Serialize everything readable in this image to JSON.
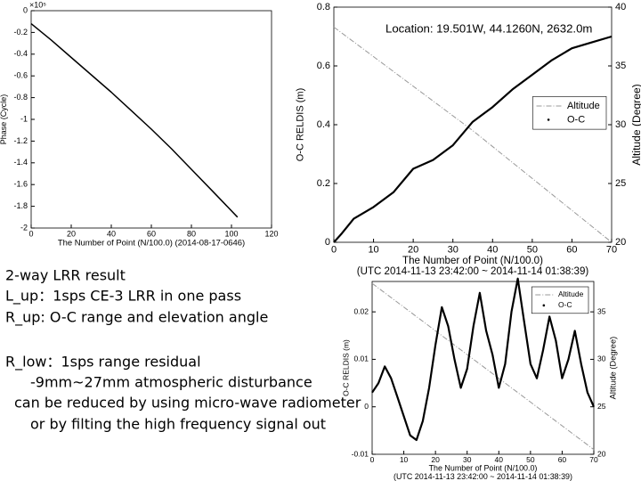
{
  "chart_data": [
    {
      "type": "line",
      "y_multiplier": "×10⁵",
      "ylabel": "Phase (Cycle)",
      "xlabel": "The Number of Point (N/100.0) (2014-08-17-0646)",
      "xlim": [
        0,
        120
      ],
      "xticks": [
        0,
        20,
        40,
        60,
        80,
        100,
        120
      ],
      "ylim": [
        -2,
        0
      ],
      "yticks": [
        0,
        -0.2,
        -0.4,
        -0.6,
        -0.8,
        -1,
        -1.2,
        -1.4,
        -1.6,
        -1.8,
        -2
      ],
      "series": [
        {
          "color": "#000000",
          "linestyle": "solid",
          "x": [
            0,
            10,
            20,
            30,
            40,
            50,
            60,
            70,
            80,
            90,
            103
          ],
          "values": [
            -0.12,
            -0.27,
            -0.43,
            -0.59,
            -0.75,
            -0.92,
            -1.09,
            -1.27,
            -1.46,
            -1.65,
            -1.9
          ]
        }
      ]
    },
    {
      "type": "line",
      "title": "Location: 19.501W, 44.1260N, 2632.0m",
      "ylabel": "O-C RELDIS (m)",
      "y2label": "Altitude (Degree)",
      "xlabel": "The Number of Point (N/100.0)",
      "xlabel2": "(UTC 2014-11-13 23:42:00 ~ 2014-11-14 01:38:39)",
      "xlim": [
        0,
        70
      ],
      "xticks": [
        0,
        10,
        20,
        30,
        40,
        50,
        60,
        70
      ],
      "ylim": [
        0,
        0.8
      ],
      "yticks": [
        0,
        0.2,
        0.4,
        0.6,
        0.8
      ],
      "y2lim": [
        20,
        40
      ],
      "y2ticks": [
        20,
        25,
        30,
        35,
        40
      ],
      "legend": "right",
      "series": [
        {
          "name": "Altitude",
          "color": "#999999",
          "linestyle": "dashdot",
          "axis": "y2",
          "x": [
            0,
            35,
            70
          ],
          "values": [
            38.3,
            29.5,
            20
          ]
        },
        {
          "name": "O-C",
          "color": "#000000",
          "linestyle": "dots",
          "x": [
            0,
            2,
            5,
            10,
            15,
            20,
            25,
            30,
            35,
            40,
            45,
            50,
            55,
            60,
            65,
            70
          ],
          "values": [
            0,
            0.03,
            0.08,
            0.12,
            0.17,
            0.25,
            0.28,
            0.33,
            0.41,
            0.46,
            0.52,
            0.57,
            0.62,
            0.66,
            0.68,
            0.7
          ]
        }
      ]
    },
    {
      "type": "line",
      "ylabel": "O-C RELDIS (m)",
      "y2label": "Altitude (Degree)",
      "xlabel": "The Number of Point (N/100.0)",
      "xlabel2": "(UTC 2014-11-13 23:42:00 ~ 2014-11-14 01:38:39)",
      "xlim": [
        0,
        70
      ],
      "xticks": [
        0,
        10,
        20,
        30,
        40,
        50,
        60,
        70
      ],
      "ylim": [
        -0.01,
        0.0264
      ],
      "yticks": [
        -0.01,
        0,
        0.01,
        0.02
      ],
      "y2lim": [
        20,
        38.2
      ],
      "y2ticks": [
        20,
        25,
        30,
        35
      ],
      "legend": "upper right",
      "series": [
        {
          "name": "Altitude",
          "color": "#999999",
          "linestyle": "dashdot",
          "axis": "y2",
          "x": [
            0,
            70
          ],
          "values": [
            38,
            20.5
          ]
        },
        {
          "name": "O-C",
          "color": "#000000",
          "linestyle": "dots",
          "x": [
            0,
            2,
            4,
            6,
            8,
            10,
            12,
            14,
            16,
            18,
            20,
            22,
            24,
            26,
            28,
            30,
            32,
            34,
            36,
            38,
            40,
            42,
            44,
            46,
            48,
            50,
            52,
            54,
            56,
            58,
            60,
            62,
            64,
            66,
            68,
            70
          ],
          "values": [
            0.003,
            0.005,
            0.0085,
            0.006,
            0.002,
            -0.002,
            -0.006,
            -0.007,
            -0.003,
            0.004,
            0.013,
            0.021,
            0.017,
            0.01,
            0.004,
            0.008,
            0.017,
            0.024,
            0.016,
            0.011,
            0.004,
            0.009,
            0.02,
            0.027,
            0.018,
            0.009,
            0.006,
            0.012,
            0.019,
            0.014,
            0.006,
            0.01,
            0.016,
            0.009,
            0.003,
            0
          ]
        }
      ]
    }
  ],
  "notes": [
    "2-way LRR result",
    "L_up：1sps  CE-3 LRR in one pass",
    "R_up:  O-C range and elevation angle",
    "R_low：1sps range residual",
    "-9mm~27mm   atmospheric disturbance",
    "can be reduced by using micro-wave radiometer",
    "or by filting the high frequency signal out"
  ]
}
